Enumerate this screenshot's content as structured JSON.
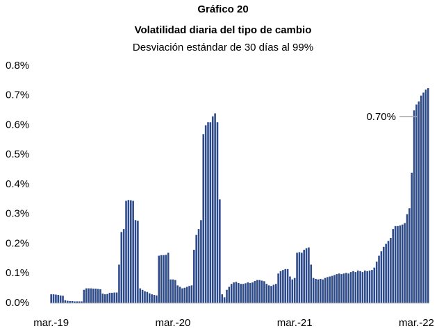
{
  "chart_data": {
    "type": "bar",
    "title": "Gráfico 20",
    "subtitle_bold": "Volatilidad diaria del tipo de cambio",
    "subtitle": "Desviación estándar de 30 días al 99%",
    "annotation": "0.70%",
    "color": "#2c4a8a",
    "ylim": [
      0,
      0.8
    ],
    "yticks": [
      {
        "value": 0,
        "label": "0.0%"
      },
      {
        "value": 0.1,
        "label": "0.1%"
      },
      {
        "value": 0.2,
        "label": "0.2%"
      },
      {
        "value": 0.3,
        "label": "0.3%"
      },
      {
        "value": 0.4,
        "label": "0.4%"
      },
      {
        "value": 0.5,
        "label": "0.5%"
      },
      {
        "value": 0.6,
        "label": "0.6%"
      },
      {
        "value": 0.7,
        "label": "0.7%"
      },
      {
        "value": 0.8,
        "label": "0.8%"
      }
    ],
    "categories": [
      "mar.-19",
      null,
      null,
      null,
      null,
      null,
      null,
      null,
      null,
      null,
      null,
      null,
      null,
      null,
      null,
      null,
      null,
      null,
      null,
      null,
      null,
      null,
      null,
      null,
      null,
      null,
      null,
      null,
      null,
      null,
      null,
      null,
      null,
      null,
      null,
      null,
      null,
      null,
      null,
      null,
      null,
      null,
      null,
      null,
      null,
      null,
      null,
      null,
      null,
      null,
      null,
      null,
      "mar.-20",
      null,
      null,
      null,
      null,
      null,
      null,
      null,
      null,
      null,
      null,
      null,
      null,
      null,
      null,
      null,
      null,
      null,
      null,
      null,
      null,
      null,
      null,
      null,
      null,
      null,
      null,
      null,
      null,
      null,
      null,
      null,
      null,
      null,
      null,
      null,
      null,
      null,
      null,
      null,
      null,
      null,
      null,
      null,
      null,
      null,
      null,
      null,
      null,
      null,
      null,
      null,
      "mar.-21",
      null,
      null,
      null,
      null,
      null,
      null,
      null,
      null,
      null,
      null,
      null,
      null,
      null,
      null,
      null,
      null,
      null,
      null,
      null,
      null,
      null,
      null,
      null,
      null,
      null,
      null,
      null,
      null,
      null,
      null,
      null,
      null,
      null,
      null,
      null,
      null,
      null,
      null,
      null,
      null,
      null,
      null,
      null,
      null,
      null,
      null,
      null,
      null,
      null,
      null,
      null,
      "mar.-22",
      null,
      null,
      null,
      null,
      null
    ],
    "values": [
      0.03,
      0.03,
      0.029,
      0.028,
      0.026,
      0.025,
      0.01,
      0.008,
      0.007,
      0.007,
      0.006,
      0.006,
      0.006,
      0.006,
      0.045,
      0.05,
      0.05,
      0.05,
      0.049,
      0.049,
      0.048,
      0.047,
      0.032,
      0.03,
      0.031,
      0.035,
      0.035,
      0.036,
      0.036,
      0.13,
      0.24,
      0.25,
      0.345,
      0.348,
      0.347,
      0.345,
      0.28,
      0.278,
      0.05,
      0.045,
      0.04,
      0.038,
      0.033,
      0.03,
      0.028,
      0.026,
      0.16,
      0.162,
      0.162,
      0.163,
      0.17,
      0.08,
      0.08,
      0.078,
      0.06,
      0.055,
      0.05,
      0.052,
      0.055,
      0.058,
      0.06,
      0.18,
      0.23,
      0.25,
      0.28,
      0.57,
      0.6,
      0.61,
      0.61,
      0.63,
      0.64,
      0.61,
      0.35,
      0.03,
      0.02,
      0.045,
      0.055,
      0.065,
      0.07,
      0.072,
      0.068,
      0.065,
      0.065,
      0.067,
      0.07,
      0.068,
      0.07,
      0.075,
      0.078,
      0.078,
      0.076,
      0.074,
      0.065,
      0.06,
      0.058,
      0.062,
      0.065,
      0.1,
      0.108,
      0.112,
      0.115,
      0.115,
      0.09,
      0.08,
      0.085,
      0.17,
      0.172,
      0.17,
      0.18,
      0.185,
      0.188,
      0.13,
      0.085,
      0.082,
      0.08,
      0.082,
      0.08,
      0.085,
      0.088,
      0.09,
      0.092,
      0.095,
      0.098,
      0.1,
      0.098,
      0.1,
      0.102,
      0.1,
      0.105,
      0.108,
      0.105,
      0.11,
      0.108,
      0.105,
      0.11,
      0.108,
      0.11,
      0.112,
      0.12,
      0.14,
      0.16,
      0.175,
      0.19,
      0.2,
      0.21,
      0.22,
      0.25,
      0.26,
      0.26,
      0.262,
      0.265,
      0.27,
      0.3,
      0.32,
      0.44,
      0.65,
      0.67,
      0.68,
      0.7,
      0.71,
      0.72,
      0.725
    ]
  }
}
